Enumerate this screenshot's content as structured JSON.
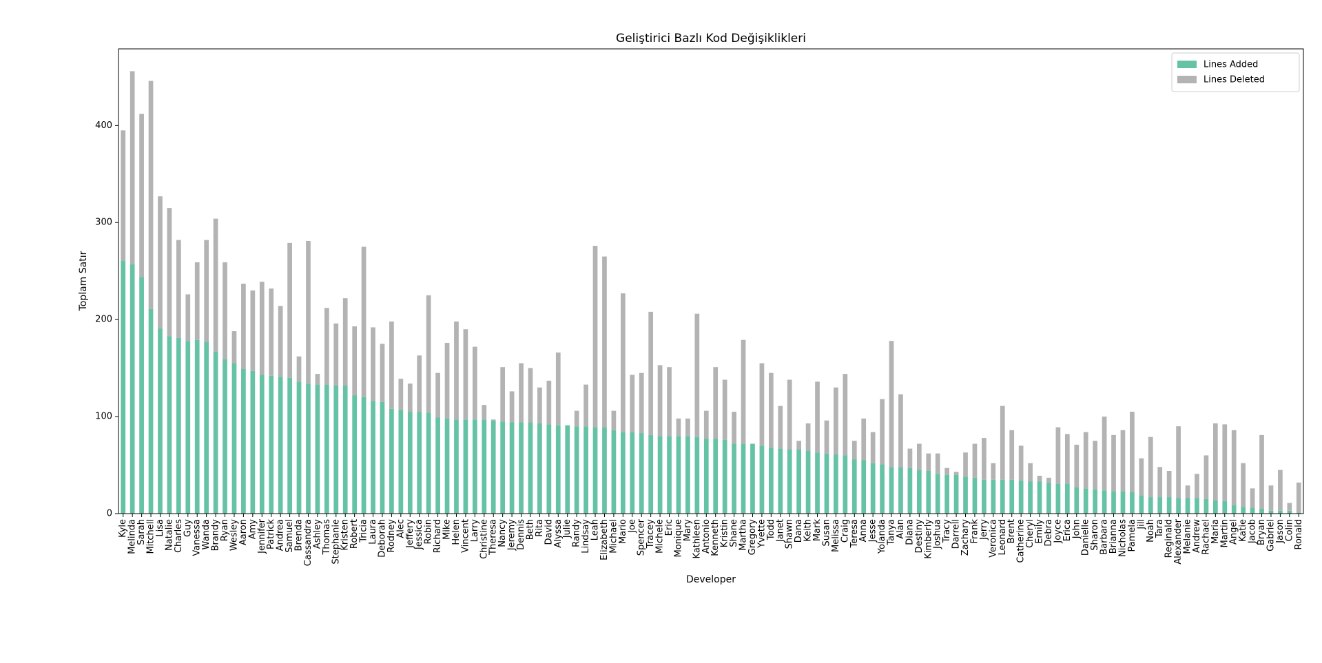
{
  "chart_data": {
    "type": "stacked_bar",
    "title": "Geliştirici Bazlı Kod Değişiklikleri",
    "x_label": "Developer",
    "y_label": "Toplam Satır",
    "categories": [
      "Kyle",
      "Melinda",
      "Sarah",
      "Mitchell",
      "Lisa",
      "Natalie",
      "Charles",
      "Guy",
      "Vanessa",
      "Wanda",
      "Brandy",
      "Ryan",
      "Wesley",
      "Aaron",
      "Amy",
      "Jennifer",
      "Patrick",
      "Andrea",
      "Samuel",
      "Brenda",
      "Cassandra",
      "Ashley",
      "Thomas",
      "Stephanie",
      "Kristen",
      "Robert",
      "Tricia",
      "Laura",
      "Deborah",
      "Rodney",
      "Alec",
      "Jeffery",
      "Jessica",
      "Robin",
      "Richard",
      "Mike",
      "Helen",
      "Vincent",
      "Larry",
      "Christine",
      "Theresa",
      "Nancy",
      "Jeremy",
      "Dennis",
      "Beth",
      "Rita",
      "David",
      "Alyssa",
      "Julie",
      "Randy",
      "Lindsay",
      "Leah",
      "Elizabeth",
      "Michael",
      "Mario",
      "Joe",
      "Spencer",
      "Tracey",
      "Michele",
      "Eric",
      "Monique",
      "Mary",
      "Kathleen",
      "Antonio",
      "Kenneth",
      "Kristin",
      "Shane",
      "Martha",
      "Gregory",
      "Yvette",
      "Todd",
      "Janet",
      "Shawn",
      "Dana",
      "Keith",
      "Mark",
      "Susan",
      "Melissa",
      "Craig",
      "Teresa",
      "Anna",
      "Jesse",
      "Yolanda",
      "Tanya",
      "Alan",
      "Diana",
      "Destiny",
      "Kimberly",
      "Joshua",
      "Tracy",
      "Darrell",
      "Zachary",
      "Frank",
      "Jerry",
      "Veronica",
      "Leonard",
      "Brent",
      "Catherine",
      "Cheryl",
      "Emily",
      "Debra",
      "Joyce",
      "Erica",
      "John",
      "Danielle",
      "Sharon",
      "Barbara",
      "Brianna",
      "Nicholas",
      "Pamela",
      "Jill",
      "Noah",
      "Tara",
      "Reginald",
      "Alexander",
      "Melanie",
      "Andrew",
      "Rachael",
      "Maria",
      "Martin",
      "Angel",
      "Katie",
      "Jacob",
      "Bryan",
      "Gabriel",
      "Jason",
      "Colin",
      "Ronald"
    ],
    "series": [
      {
        "name": "Lines Added",
        "color": "#66c2a5",
        "values": [
          261,
          257,
          244,
          211,
          191,
          183,
          181,
          178,
          179,
          177,
          167,
          159,
          155,
          149,
          147,
          143,
          142,
          141,
          140,
          136,
          134,
          133,
          133,
          132,
          132,
          122,
          120,
          116,
          115,
          108,
          107,
          105,
          105,
          104,
          99,
          98,
          97,
          97,
          97,
          97,
          96,
          95,
          94,
          94,
          94,
          93,
          92,
          91,
          91,
          90,
          90,
          89,
          89,
          86,
          84,
          84,
          83,
          81,
          80,
          80,
          80,
          80,
          79,
          77,
          77,
          76,
          72,
          72,
          72,
          70,
          68,
          67,
          66,
          66,
          65,
          63,
          62,
          61,
          60,
          56,
          55,
          52,
          51,
          48,
          48,
          47,
          45,
          44,
          41,
          40,
          40,
          38,
          37,
          35,
          35,
          35,
          35,
          34,
          33,
          33,
          32,
          31,
          31,
          27,
          26,
          25,
          24,
          23,
          23,
          22,
          19,
          17,
          17,
          17,
          16,
          16,
          16,
          15,
          14,
          13,
          9,
          7,
          6,
          5,
          3,
          3,
          3,
          1
        ]
      },
      {
        "name": "Lines Deleted",
        "color": "#b3b3b3",
        "values": [
          134,
          199,
          168,
          235,
          136,
          132,
          101,
          48,
          80,
          105,
          137,
          100,
          33,
          88,
          83,
          96,
          90,
          73,
          139,
          26,
          147,
          11,
          79,
          64,
          90,
          71,
          155,
          76,
          60,
          90,
          32,
          29,
          58,
          121,
          46,
          78,
          101,
          93,
          75,
          15,
          1,
          56,
          32,
          61,
          56,
          37,
          45,
          75,
          0,
          16,
          43,
          187,
          176,
          20,
          143,
          59,
          62,
          127,
          73,
          71,
          18,
          18,
          127,
          29,
          74,
          62,
          33,
          107,
          0,
          85,
          77,
          44,
          72,
          9,
          28,
          73,
          34,
          69,
          84,
          19,
          43,
          32,
          67,
          130,
          75,
          20,
          27,
          18,
          21,
          7,
          3,
          25,
          35,
          43,
          17,
          76,
          51,
          36,
          19,
          6,
          5,
          58,
          51,
          44,
          58,
          50,
          76,
          58,
          63,
          83,
          38,
          62,
          31,
          27,
          74,
          13,
          25,
          45,
          79,
          79,
          77,
          45,
          20,
          76,
          26,
          42,
          8,
          31
        ]
      }
    ],
    "ylim": [
      0,
      479
    ],
    "yticks": [
      0,
      100,
      200,
      300,
      400
    ],
    "legend": "upper right"
  }
}
